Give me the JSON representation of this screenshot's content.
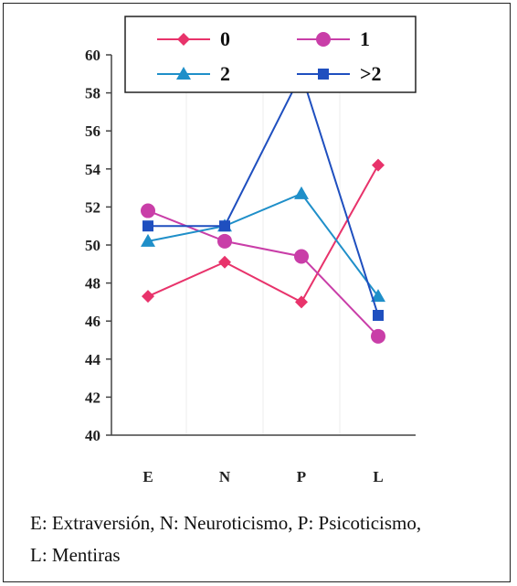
{
  "chart_data": {
    "type": "line",
    "categories": [
      "E",
      "N",
      "P",
      "L"
    ],
    "series": [
      {
        "name": "0",
        "color": "#e8336b",
        "marker": "diamond",
        "values": [
          47.3,
          49.1,
          47.0,
          54.2
        ]
      },
      {
        "name": "1",
        "color": "#c93ea8",
        "marker": "circle",
        "values": [
          51.8,
          50.2,
          49.4,
          45.2
        ]
      },
      {
        "name": "2",
        "color": "#1f8fc9",
        "marker": "triangle",
        "values": [
          50.2,
          51.0,
          52.7,
          47.3
        ]
      },
      {
        "name": ">2",
        "color": "#1f4fbf",
        "marker": "square",
        "values": [
          51.0,
          51.0,
          59.0,
          46.3
        ]
      }
    ],
    "ylim": [
      40,
      60
    ],
    "yticks": [
      40,
      42,
      44,
      46,
      48,
      50,
      52,
      54,
      56,
      58,
      60
    ],
    "xlabel": "",
    "ylabel": "",
    "legend": "top",
    "grid": false
  },
  "caption": {
    "line1": "E: Extraversión, N: Neuroticismo, P: Psicoticismo,",
    "line2": "L: Mentiras"
  }
}
